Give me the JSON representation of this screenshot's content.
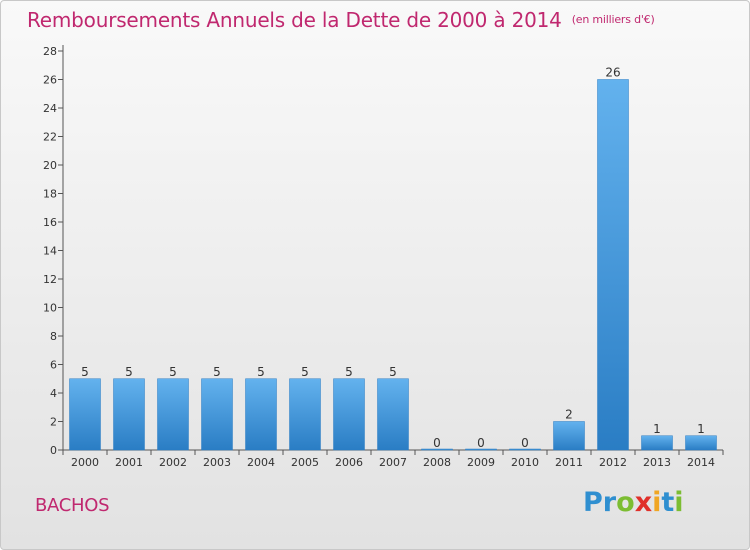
{
  "header": {
    "title": "Remboursements Annuels de la Dette de 2000 à 2014",
    "unit": "(en milliers d'€)"
  },
  "footer": {
    "commune": "BACHOS",
    "logo": [
      "P",
      "r",
      "o",
      "x",
      "i",
      "t",
      "i"
    ],
    "logo_colors": [
      "#2f8fd0",
      "#2f8fd0",
      "#7cbd32",
      "#e0302a",
      "#f0a623",
      "#2f8fd0",
      "#7cbd32"
    ]
  },
  "chart_data": {
    "type": "bar",
    "title": "Remboursements Annuels de la Dette de 2000 à 2014",
    "categories": [
      "2000",
      "2001",
      "2002",
      "2003",
      "2004",
      "2005",
      "2006",
      "2007",
      "2008",
      "2009",
      "2010",
      "2011",
      "2012",
      "2013",
      "2014"
    ],
    "values": [
      5,
      5,
      5,
      5,
      5,
      5,
      5,
      5,
      0,
      0,
      0,
      2,
      26,
      1,
      1
    ],
    "data_labels": [
      "5",
      "5",
      "5",
      "5",
      "5",
      "5",
      "5",
      "5",
      "0",
      "0",
      "0",
      "2",
      "26",
      "1",
      "1"
    ],
    "ylim": [
      0,
      28
    ],
    "yticks": [
      0,
      2,
      4,
      6,
      8,
      10,
      12,
      14,
      16,
      18,
      20,
      22,
      24,
      26,
      28
    ],
    "grid": false,
    "colors": {
      "bar_light": "#63b2ee",
      "bar_dark": "#2a7dc4",
      "axis": "#555555",
      "title": "#c0286f"
    }
  }
}
